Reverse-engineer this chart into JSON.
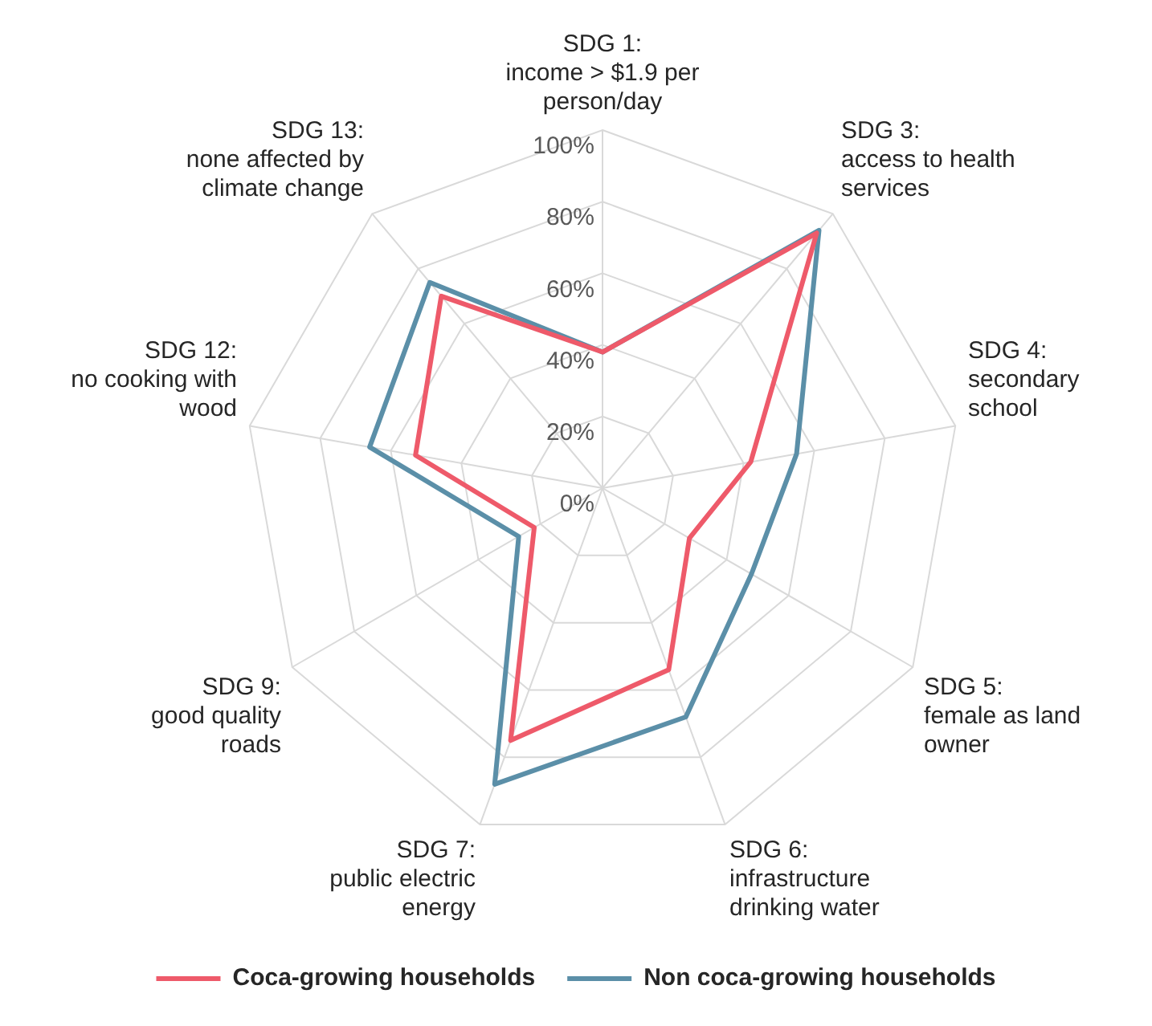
{
  "chart_data": {
    "type": "radar",
    "categories": [
      "SDG 1:\nincome > $1.9 per\nperson/day",
      "SDG 3:\naccess to health\nservices",
      "SDG 4:\nsecondary\nschool",
      "SDG 5:\nfemale as land\nowner",
      "SDG 6:\ninfrastructure\ndrinking water",
      "SDG 7:\npublic electric\nenergy",
      "SDG 9:\ngood quality\nroads",
      "SDG 12:\nno cooking with\nwood",
      "SDG 13:\nnone affected by\nclimate change"
    ],
    "series": [
      {
        "name": "Coca-growing households",
        "color": "#ee5a6a",
        "values": [
          38,
          93,
          42,
          28,
          54,
          75,
          22,
          53,
          70
        ]
      },
      {
        "name": "Non coca-growing households",
        "color": "#5b8fa8",
        "values": [
          38,
          94,
          55,
          48,
          68,
          88,
          27,
          66,
          75
        ]
      }
    ],
    "ylim": [
      0,
      100
    ],
    "yticks": [
      {
        "value": 0,
        "label": "0%"
      },
      {
        "value": 20,
        "label": "20%"
      },
      {
        "value": 40,
        "label": "40%"
      },
      {
        "value": 60,
        "label": "60%"
      },
      {
        "value": 80,
        "label": "80%"
      },
      {
        "value": 100,
        "label": "100%"
      }
    ],
    "grid": true,
    "legend": "bottom"
  }
}
